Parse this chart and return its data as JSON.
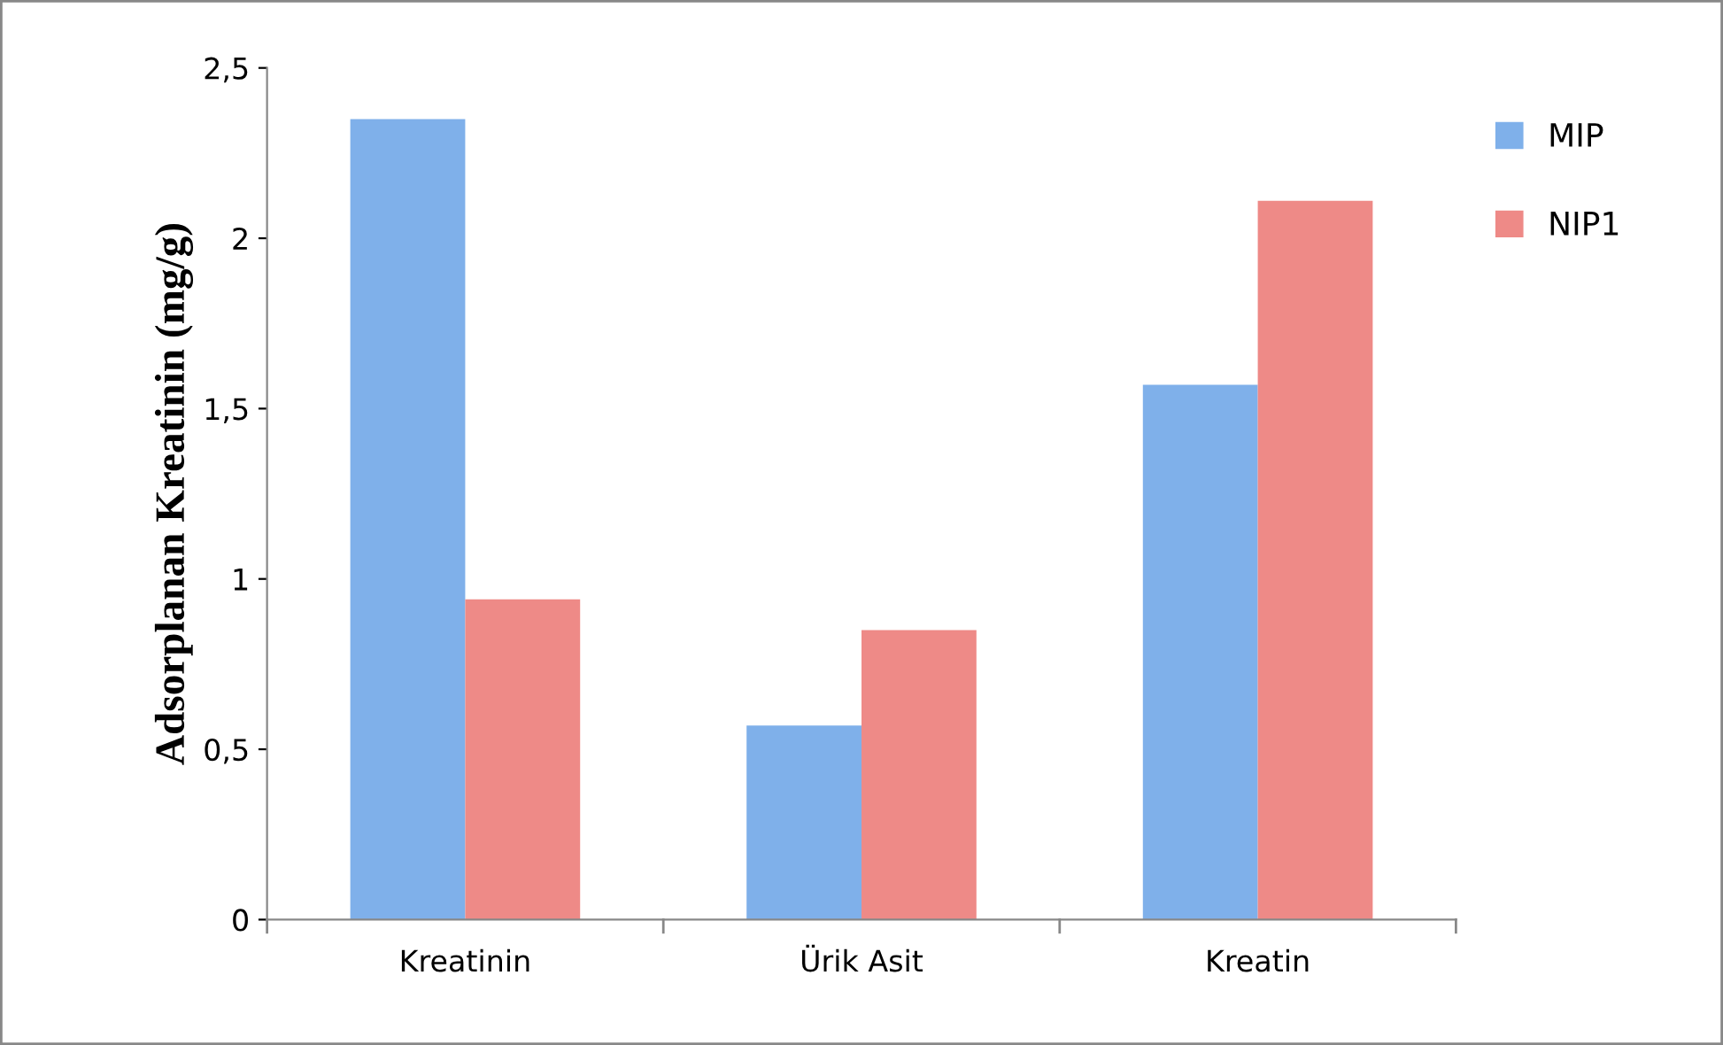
{
  "chart_data": {
    "type": "bar",
    "ylabel": "Adsorplanan Kreatinin (mg/g)",
    "categories": [
      "Kreatinin",
      "Ürik Asit",
      "Kreatin"
    ],
    "series": [
      {
        "name": "MIP",
        "color": "#7fb0ea",
        "values": [
          2.35,
          0.57,
          1.57
        ]
      },
      {
        "name": "NIP1",
        "color": "#ee8a87",
        "values": [
          0.94,
          0.85,
          2.11
        ]
      }
    ],
    "ylim": [
      0,
      2.5
    ],
    "yticks": [
      0,
      {
        "value": 0.5,
        "label": "0,5"
      },
      1,
      {
        "value": 1.5,
        "label": "1,5"
      },
      2,
      {
        "value": 2.5,
        "label": "2,5"
      }
    ],
    "grid": false,
    "legend": "top right"
  }
}
